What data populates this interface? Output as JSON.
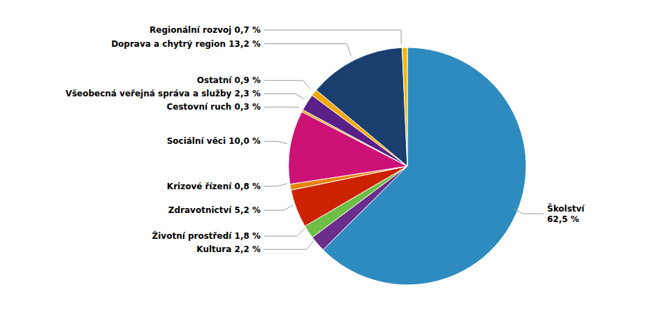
{
  "chart_data": {
    "type": "pie",
    "categories": [
      "Školství\n62,5 %",
      "Kultura 2,2 %",
      "Životní prostředí 1,8 %",
      "Zdravotnictví 5,2 %",
      "Krizové řízení 0,8 %",
      "Sociální věci 10,0 %",
      "Cestovní ruch 0,3 %",
      "Všeobecná veřejná správa a služby 2,3 %",
      "Ostatní 0,9 %",
      "Doprava a chytrý region 13,2 %",
      "Regionální rozvoj 0,7 %"
    ],
    "values": [
      62.5,
      2.2,
      1.8,
      5.2,
      0.8,
      10.0,
      0.3,
      2.3,
      0.9,
      13.2,
      0.7
    ],
    "colors": [
      "#2E8BC0",
      "#6B2D8B",
      "#6DBE45",
      "#CC2200",
      "#E8820A",
      "#CC1177",
      "#F5A800",
      "#5B1F8A",
      "#F5A800",
      "#1A3F6F",
      "#F5B800"
    ]
  }
}
